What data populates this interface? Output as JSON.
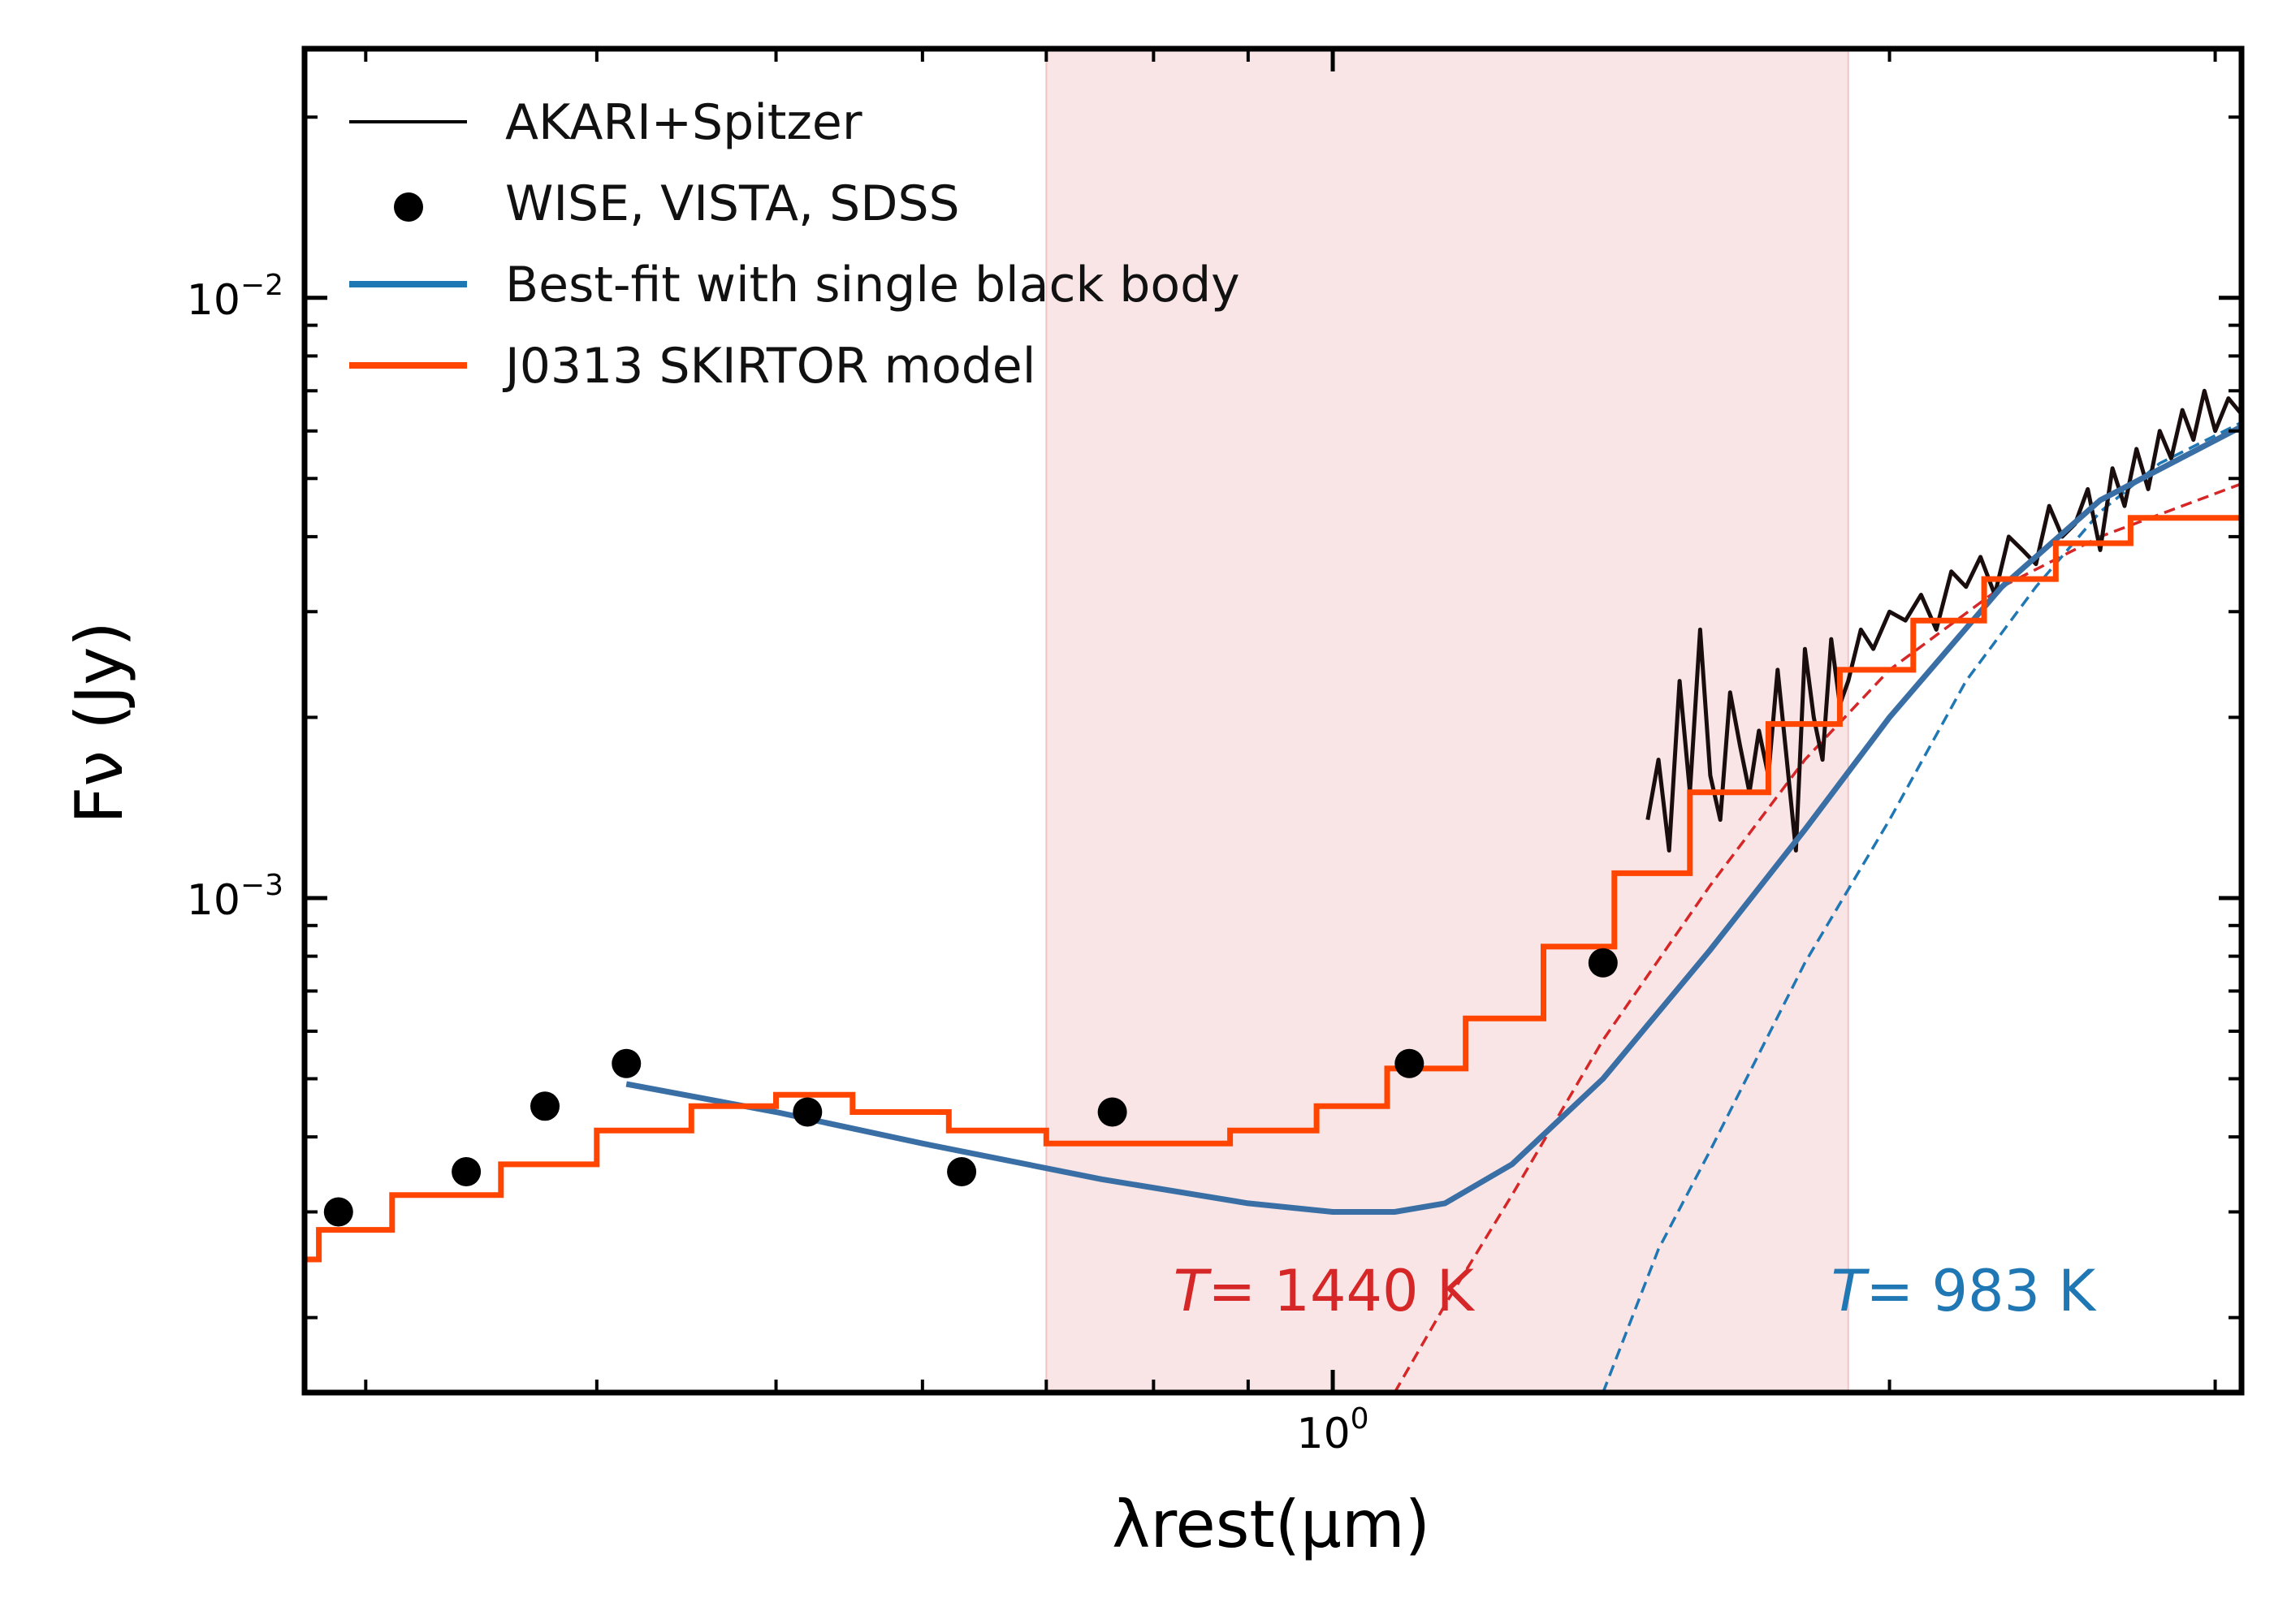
{
  "chart_data": {
    "type": "line",
    "xscale": "log",
    "yscale": "log",
    "xlabel": "λrest(μm)",
    "ylabel": "Fν (Jy)",
    "xlim": [
      0.278,
      3.1
    ],
    "ylim": [
      0.00015,
      0.026
    ],
    "y_ticks": [
      {
        "value": 0.01,
        "base": "10",
        "exp": "−2"
      },
      {
        "value": 0.001,
        "base": "10",
        "exp": "−3"
      }
    ],
    "x_ticks": [
      {
        "value": 1.0,
        "base": "10",
        "exp": "0"
      }
    ],
    "shaded_band": {
      "x_range": [
        0.7,
        1.9
      ],
      "color": "#f5d4d4"
    },
    "legend": {
      "location": "upper left",
      "entries": [
        {
          "label": "AKARI+Spitzer",
          "style": "line",
          "color": "#000000"
        },
        {
          "label": "WISE, VISTA, SDSS",
          "style": "marker",
          "color": "#000000"
        },
        {
          "label": "Best-fit with single black body",
          "style": "line",
          "color": "#1f77b4"
        },
        {
          "label": "J0313 SKIRTOR model",
          "style": "line",
          "color": "#ff4500"
        }
      ]
    },
    "series": [
      {
        "name": "WISE, VISTA, SDSS",
        "kind": "scatter",
        "color": "#000000",
        "x": [
          0.29,
          0.34,
          0.375,
          0.415,
          0.52,
          0.63,
          0.76,
          1.1,
          1.4
        ],
        "y": [
          0.0003,
          0.00035,
          0.00045,
          0.00053,
          0.00044,
          0.00035,
          0.00044,
          0.00053,
          0.00078
        ]
      },
      {
        "name": "J0313 SKIRTOR model",
        "kind": "step",
        "color": "#ff4500",
        "x": [
          0.278,
          0.283,
          0.31,
          0.355,
          0.4,
          0.45,
          0.5,
          0.55,
          0.62,
          0.7,
          0.78,
          0.88,
          0.98,
          1.07,
          1.18,
          1.3,
          1.42,
          1.56,
          1.72,
          1.88,
          2.06,
          2.25,
          2.46,
          2.7,
          3.1
        ],
        "y": [
          0.00025,
          0.00028,
          0.00032,
          0.00036,
          0.00041,
          0.00045,
          0.00047,
          0.00044,
          0.00041,
          0.00039,
          0.00039,
          0.00041,
          0.00045,
          0.00052,
          0.00063,
          0.00083,
          0.0011,
          0.0015,
          0.00195,
          0.0024,
          0.0029,
          0.0034,
          0.0039,
          0.0043,
          0.0048
        ]
      },
      {
        "name": "Best-fit with single black body",
        "kind": "line",
        "color": "#3a6fa6",
        "x": [
          0.415,
          0.5,
          0.6,
          0.75,
          0.9,
          1.0,
          1.08,
          1.15,
          1.25,
          1.4,
          1.6,
          1.8,
          2.0,
          2.3,
          2.6,
          3.1
        ],
        "y": [
          0.00049,
          0.00044,
          0.00039,
          0.00034,
          0.00031,
          0.0003,
          0.0003,
          0.00031,
          0.00036,
          0.0005,
          0.00082,
          0.0013,
          0.002,
          0.0033,
          0.0046,
          0.0061
        ]
      },
      {
        "name": "T=1440 K black body",
        "kind": "dashed",
        "color": "#d62728",
        "x": [
          1.08,
          1.15,
          1.25,
          1.4,
          1.6,
          1.8,
          2.0,
          2.3,
          2.6,
          3.1
        ],
        "y": [
          0.00015,
          0.00021,
          0.00032,
          0.00058,
          0.00105,
          0.0017,
          0.0024,
          0.0033,
          0.004,
          0.0049
        ]
      },
      {
        "name": "T=983 K black body",
        "kind": "dashed",
        "color": "#1f77b4",
        "x": [
          1.4,
          1.5,
          1.6,
          1.8,
          2.0,
          2.2,
          2.4,
          2.6,
          2.8,
          3.1
        ],
        "y": [
          0.00015,
          0.00026,
          0.00038,
          0.00078,
          0.00135,
          0.0023,
          0.0033,
          0.0044,
          0.0053,
          0.0062
        ]
      },
      {
        "name": "AKARI+Spitzer",
        "kind": "spectrum",
        "color": "#1a0d0d",
        "x": [
          1.48,
          1.5,
          1.52,
          1.54,
          1.56,
          1.58,
          1.6,
          1.62,
          1.64,
          1.66,
          1.68,
          1.7,
          1.72,
          1.74,
          1.76,
          1.78,
          1.8,
          1.82,
          1.84,
          1.86,
          1.88,
          1.9,
          1.93,
          1.96,
          2.0,
          2.04,
          2.08,
          2.12,
          2.16,
          2.2,
          2.24,
          2.28,
          2.32,
          2.36,
          2.4,
          2.44,
          2.48,
          2.52,
          2.56,
          2.6,
          2.64,
          2.68,
          2.72,
          2.76,
          2.8,
          2.84,
          2.88,
          2.92,
          2.96,
          3.0,
          3.05,
          3.1
        ],
        "y": [
          0.00135,
          0.0017,
          0.0012,
          0.0023,
          0.0015,
          0.0028,
          0.0016,
          0.00135,
          0.0022,
          0.0018,
          0.0015,
          0.0019,
          0.0016,
          0.0024,
          0.0017,
          0.0012,
          0.0026,
          0.002,
          0.0017,
          0.0027,
          0.0021,
          0.0023,
          0.0028,
          0.0026,
          0.003,
          0.0029,
          0.0032,
          0.0028,
          0.0035,
          0.0033,
          0.0037,
          0.0032,
          0.004,
          0.0038,
          0.0036,
          0.0045,
          0.004,
          0.0042,
          0.0048,
          0.0038,
          0.0052,
          0.0045,
          0.0056,
          0.0048,
          0.006,
          0.0054,
          0.0065,
          0.0058,
          0.007,
          0.006,
          0.0068,
          0.0064
        ]
      }
    ],
    "annotations": [
      {
        "label_T": "T",
        "label_rest": "= 1440 K",
        "x": 0.82,
        "y": 0.00022,
        "color": "#d62728"
      },
      {
        "label_T": "T",
        "label_rest": "= 983 K",
        "x": 1.86,
        "y": 0.00022,
        "color": "#1f77b4"
      }
    ]
  }
}
